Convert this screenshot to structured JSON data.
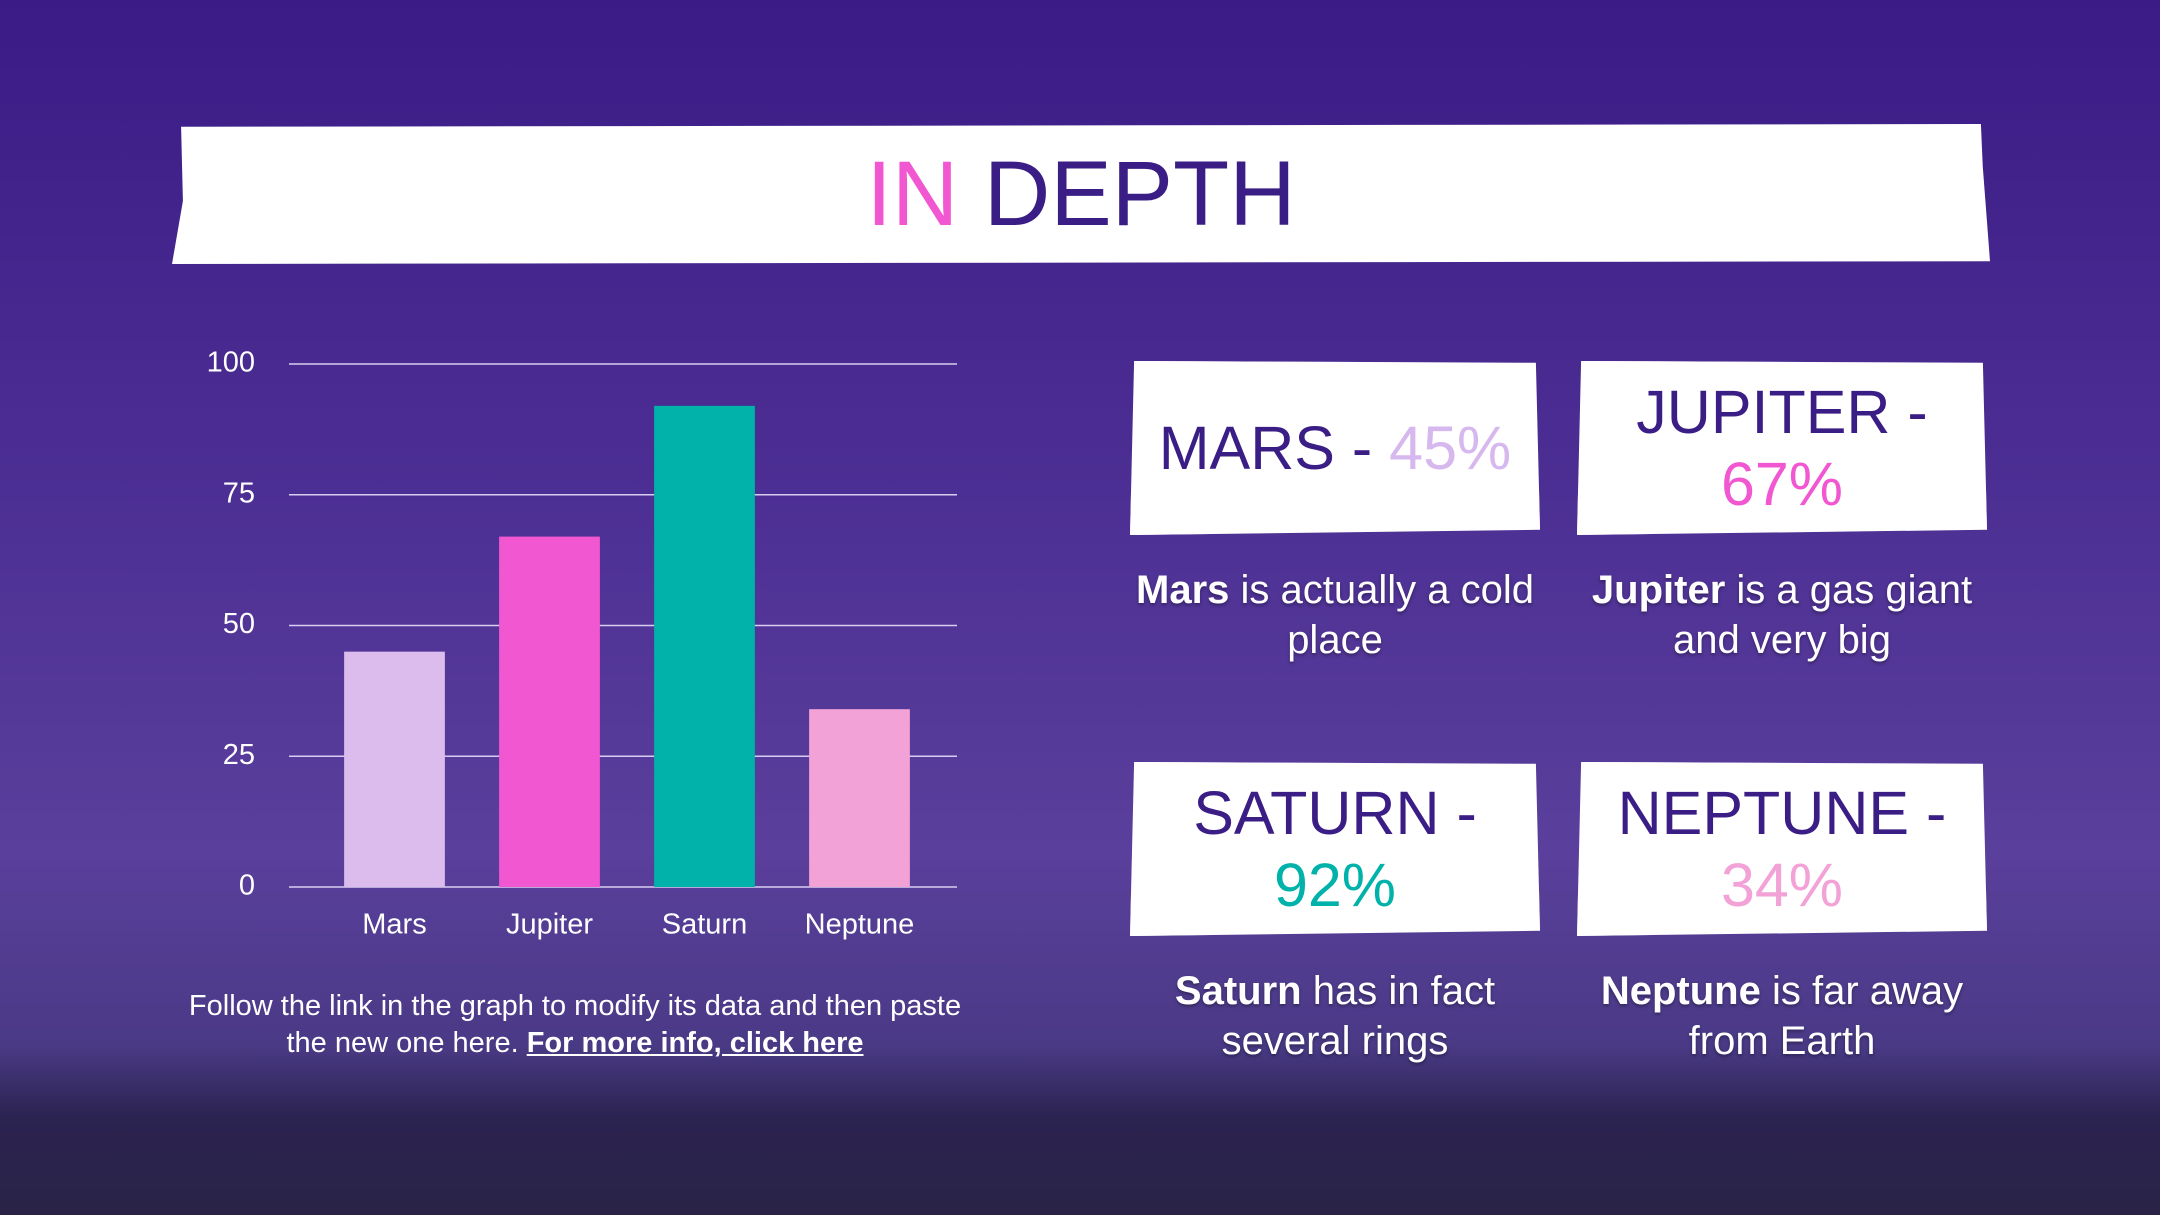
{
  "title": {
    "highlight": "IN",
    "rest": "DEPTH"
  },
  "chart_data": {
    "type": "bar",
    "categories": [
      "Mars",
      "Jupiter",
      "Saturn",
      "Neptune"
    ],
    "values": [
      45,
      67,
      92,
      34
    ],
    "colors": [
      "#dbbcec",
      "#f257d2",
      "#00b2a9",
      "#f2a2d6"
    ],
    "ylim": [
      0,
      100
    ],
    "yticks": [
      0,
      25,
      50,
      75,
      100
    ],
    "grid": true
  },
  "note": {
    "text": "Follow the link in the graph to modify its data and then paste the new one here.",
    "link": "For more info, click here"
  },
  "cards": [
    {
      "name": "MARS -",
      "percent": "45%",
      "color": "#d6b8ee",
      "bold": "Mars",
      "text": "is actually a cold place"
    },
    {
      "name": "JUPITER -",
      "percent": "67%",
      "color": "#f257d2",
      "bold": "Jupiter",
      "text": "is a gas giant and very big"
    },
    {
      "name": "SATURN -",
      "percent": "92%",
      "color": "#00b2a9",
      "bold": "Saturn",
      "text": "has in fact several rings"
    },
    {
      "name": "NEPTUNE -",
      "percent": "34%",
      "color": "#f2a2d6",
      "bold": "Neptune",
      "text": "is far away from Earth"
    }
  ]
}
